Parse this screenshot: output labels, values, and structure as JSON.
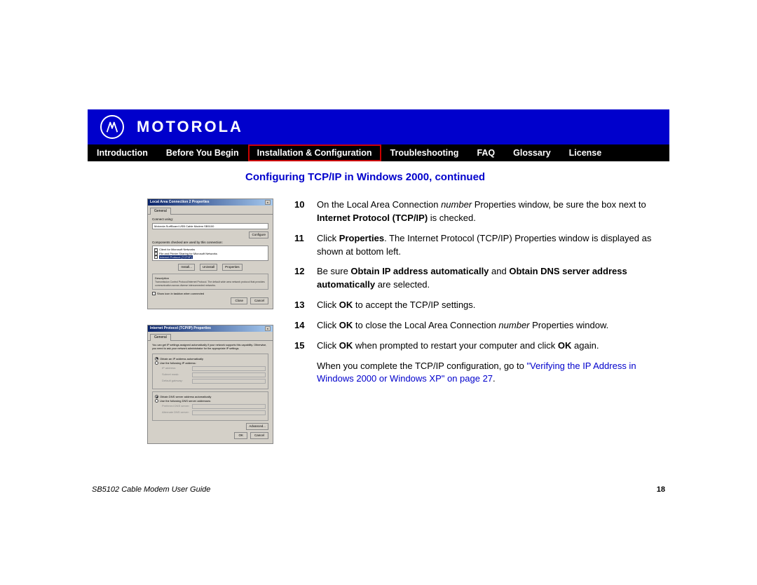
{
  "header": {
    "brand": "MOTOROLA",
    "brand_color": "#0000cc"
  },
  "nav": {
    "items": [
      {
        "label": "Introduction",
        "active": false
      },
      {
        "label": "Before You Begin",
        "active": false
      },
      {
        "label": "Installation & Configuration",
        "active": true
      },
      {
        "label": "Troubleshooting",
        "active": false
      },
      {
        "label": "FAQ",
        "active": false
      },
      {
        "label": "Glossary",
        "active": false
      },
      {
        "label": "License",
        "active": false
      }
    ],
    "active_border_color": "#cc0000",
    "bg_color": "#000000",
    "text_color": "#ffffff"
  },
  "section_title": "Configuring TCP/IP in Windows 2000, continued",
  "dialog1": {
    "title": "Local Area Connection 2 Properties",
    "tab": "General",
    "connect_label": "Connect using:",
    "adapter": "Motorola SurfBoard USB Cable Modem SB5100",
    "configure_btn": "Configure",
    "components_label": "Components checked are used by this connection:",
    "items": [
      {
        "checked": true,
        "text": "Client for Microsoft Networks"
      },
      {
        "checked": true,
        "text": "File and Printer Sharing for Microsoft Networks"
      },
      {
        "checked": true,
        "text": "Internet Protocol (TCP/IP)",
        "highlight": true
      }
    ],
    "btns3": [
      "Install...",
      "Uninstall",
      "Properties"
    ],
    "desc_label": "Description",
    "desc_text": "Transmission Control Protocol/Internet Protocol. The default wide area network protocol that provides communication across diverse interconnected networks.",
    "show_icon": "Show icon in taskbar when connected",
    "ok": "Close",
    "cancel": "Cancel"
  },
  "dialog2": {
    "title": "Internet Protocol (TCP/IP) Properties",
    "tab": "General",
    "intro": "You can get IP settings assigned automatically if your network supports this capability. Otherwise, you need to ask your network administrator for the appropriate IP settings.",
    "r1": "Obtain an IP address automatically",
    "r2": "Use the following IP address:",
    "ip_label": "IP address:",
    "mask_label": "Subnet mask:",
    "gw_label": "Default gateway:",
    "r3": "Obtain DNS server address automatically",
    "r4": "Use the following DNS server addresses:",
    "dns1_label": "Preferred DNS server:",
    "dns2_label": "Alternate DNS server:",
    "advanced": "Advanced...",
    "ok": "OK",
    "cancel": "Cancel"
  },
  "steps": [
    {
      "num": "10",
      "html": "On the Local Area Connection <span class='i'>number</span> Properties window, be sure the box next to <span class='b'>Internet Protocol (TCP/IP)</span> is checked."
    },
    {
      "num": "11",
      "html": "Click <span class='b'>Properties</span>. The Internet Protocol (TCP/IP) Properties window is displayed as shown at bottom left."
    },
    {
      "num": "12",
      "html": "Be sure <span class='b'>Obtain IP address automatically</span> and <span class='b'>Obtain DNS server address automatically</span> are selected."
    },
    {
      "num": "13",
      "html": "Click <span class='b'>OK</span> to accept the TCP/IP settings."
    },
    {
      "num": "14",
      "html": "Click <span class='b'>OK</span> to close the Local Area Connection <span class='i'>number</span> Properties window."
    },
    {
      "num": "15",
      "html": "Click <span class='b'>OK</span> when prompted to restart your computer and click <span class='b'>OK</span> again."
    }
  ],
  "followup_prefix": "When you complete the TCP/IP configuration, go to ",
  "followup_link": "\"Verifying the IP Address in Windows 2000 or Windows XP\" on page 27",
  "followup_suffix": ".",
  "footer": {
    "doc": "SB5102 Cable Modem User Guide",
    "page": "18"
  },
  "colors": {
    "link": "#0000cc",
    "page_bg": "#ffffff",
    "dialog_bg": "#d4d0c8",
    "titlebar_gradient_from": "#0a246a",
    "titlebar_gradient_to": "#a6caf0"
  }
}
